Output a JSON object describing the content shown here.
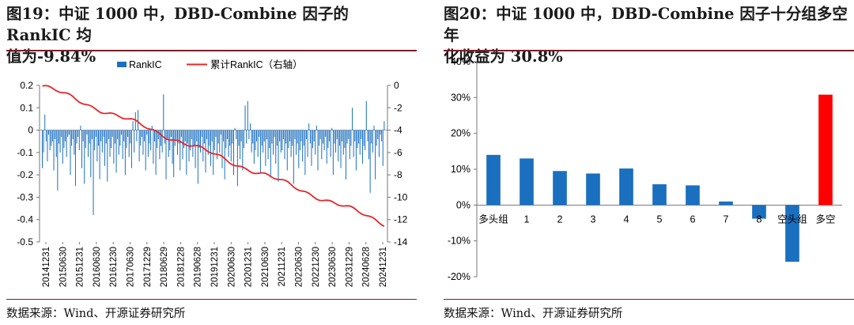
{
  "left": {
    "title_line1": "图19：中证 1000 中，DBD-Combine 因子的 RankIC 均",
    "title_line2": "值为-9.84%",
    "source": "数据来源：Wind、开源证券研究所"
  },
  "right": {
    "title_line1": "图20：中证 1000 中，DBD-Combine 因子十分组多空年",
    "title_line2": "化收益为 30.8%",
    "source": "数据来源：Wind、开源证券研究所"
  },
  "colors": {
    "bar_blue": "#1a6fbf",
    "line_red": "#e8252a",
    "long_short_red": "#ff0000"
  },
  "chart_data": [
    {
      "type": "bar+line",
      "title": "中证1000中，DBD-Combine因子的RankIC",
      "legend": [
        "RankIC",
        "累计RankIC（右轴）"
      ],
      "legend_position": "top",
      "y_left_range": [
        -0.5,
        0.2
      ],
      "y_left_ticks": [
        "0.2",
        "0.1",
        "0",
        "-0.1",
        "-0.2",
        "-0.3",
        "-0.4",
        "-0.5"
      ],
      "y_right_range": [
        -14,
        0
      ],
      "y_right_ticks": [
        "0",
        "-2",
        "-4",
        "-6",
        "-8",
        "-10",
        "-12",
        "-14"
      ],
      "x_ticks": [
        "20141231",
        "20150630",
        "20151231",
        "20160630",
        "20161230",
        "20170630",
        "20171229",
        "20180629",
        "20181228",
        "20190628",
        "20191231",
        "20200630",
        "20201231",
        "20210630",
        "20211231",
        "20220630",
        "20221230",
        "20230630",
        "20231229",
        "20240628",
        "20241231"
      ],
      "rankic_weekly": [
        -0.17,
        -0.1,
        0.07,
        -0.05,
        -0.14,
        -0.02,
        -0.09,
        -0.07,
        -0.05,
        -0.18,
        -0.04,
        -0.12,
        -0.27,
        -0.06,
        -0.1,
        -0.03,
        -0.15,
        -0.08,
        -0.05,
        -0.12,
        -0.03,
        -0.02,
        -0.2,
        -0.07,
        -0.04,
        -0.11,
        -0.25,
        -0.06,
        -0.03,
        -0.09,
        0.02,
        -0.17,
        -0.05,
        -0.24,
        -0.08,
        -0.02,
        -0.12,
        -0.06,
        -0.21,
        -0.04,
        -0.38,
        -0.09,
        -0.03,
        -0.14,
        -0.07,
        -0.22,
        -0.05,
        -0.1,
        -0.03,
        -0.16,
        -0.06,
        -0.23,
        -0.04,
        -0.12,
        -0.08,
        -0.03,
        -0.15,
        -0.06,
        -0.19,
        -0.04,
        -0.11,
        -0.07,
        -0.02,
        -0.13,
        -0.05,
        -0.2,
        -0.08,
        -0.03,
        -0.12,
        -0.06,
        -0.17,
        0.04,
        -0.1,
        0.08,
        -0.05,
        0.09,
        -0.14,
        -0.07,
        -0.03,
        -0.11,
        -0.05,
        -0.18,
        -0.02,
        -0.12,
        -0.06,
        -0.09,
        0.02,
        -0.15,
        -0.05,
        -0.2,
        -0.08,
        -0.04,
        -0.13,
        -0.07,
        -0.1,
        0.16,
        -0.06,
        -0.22,
        -0.04,
        -0.12,
        -0.09,
        -0.03,
        -0.15,
        -0.21,
        -0.07,
        -0.04,
        -0.11,
        -0.06,
        -0.18,
        -0.03,
        -0.13,
        -0.08,
        -0.05,
        -0.2,
        -0.06,
        -0.14,
        -0.09,
        -0.04,
        -0.12,
        -0.07,
        -0.17,
        -0.05,
        -0.24,
        -0.08,
        -0.1,
        -0.03,
        -0.14,
        -0.06,
        -0.19,
        -0.04,
        -0.11,
        -0.07,
        -0.16,
        -0.05,
        -0.2,
        -0.09,
        -0.03,
        -0.13,
        -0.06,
        -0.1,
        -0.02,
        -0.17,
        -0.05,
        -0.22,
        -0.08,
        -0.04,
        -0.12,
        -0.07,
        -0.14,
        -0.06,
        -0.2,
        0.01,
        -0.04,
        -0.25,
        -0.07,
        -0.13,
        -0.05,
        -0.18,
        -0.08,
        0.11,
        -0.06,
        0.13,
        -0.04,
        0.03,
        -0.1,
        -0.06,
        -0.15,
        -0.09,
        -0.05,
        -0.12,
        -0.03,
        -0.19,
        -0.07,
        -0.1,
        -0.05,
        -0.16,
        -0.04,
        -0.13,
        -0.08,
        -0.21,
        -0.06,
        -0.11,
        -0.03,
        -0.15,
        -0.07,
        -0.23,
        -0.05,
        -0.1,
        -0.09,
        -0.04,
        -0.13,
        -0.06,
        -0.18,
        -0.08,
        -0.05,
        -0.12,
        -0.07,
        -0.24,
        -0.04,
        -0.11,
        -0.06,
        -0.17,
        -0.09,
        -0.05,
        -0.14,
        -0.07,
        -0.2,
        -0.04,
        -0.12,
        0.03,
        -0.06,
        -0.16,
        -0.08,
        -0.05,
        -0.11,
        0.02,
        -0.18,
        -0.07,
        -0.04,
        -0.13,
        -0.06,
        -0.09,
        -0.03,
        -0.15,
        -0.08,
        -0.05,
        -0.12,
        0.01,
        -0.2,
        -0.06,
        -0.1,
        -0.04,
        -0.14,
        -0.07,
        -0.17,
        -0.05,
        -0.11,
        -0.08,
        -0.22,
        -0.06,
        -0.04,
        -0.13,
        -0.07,
        0.1,
        -0.12,
        -0.05,
        -0.18,
        -0.08,
        -0.06,
        -0.11,
        -0.04,
        -0.15,
        -0.07,
        -0.09,
        0.13,
        -0.05,
        -0.13,
        -0.28,
        -0.06,
        -0.1,
        0.02,
        -0.22,
        -0.07,
        -0.04,
        -0.12,
        -0.02,
        -0.05,
        -0.16,
        0.04
      ],
      "cumulative_rankic_range": [
        -0.05,
        -12.31
      ]
    },
    {
      "type": "bar",
      "title": "中证1000中，DBD-Combine因子十分组多空年化收益",
      "categories": [
        "多头组",
        "1",
        "2",
        "3",
        "4",
        "5",
        "6",
        "7",
        "8",
        "空头组",
        "多空"
      ],
      "values": [
        14.0,
        13.0,
        9.5,
        8.8,
        10.2,
        5.8,
        5.5,
        1.0,
        -3.8,
        -15.8,
        30.8
      ],
      "y_range": [
        -20,
        40
      ],
      "y_ticks": [
        "40%",
        "30%",
        "20%",
        "10%",
        "0%",
        "-10%",
        "-20%"
      ]
    }
  ]
}
